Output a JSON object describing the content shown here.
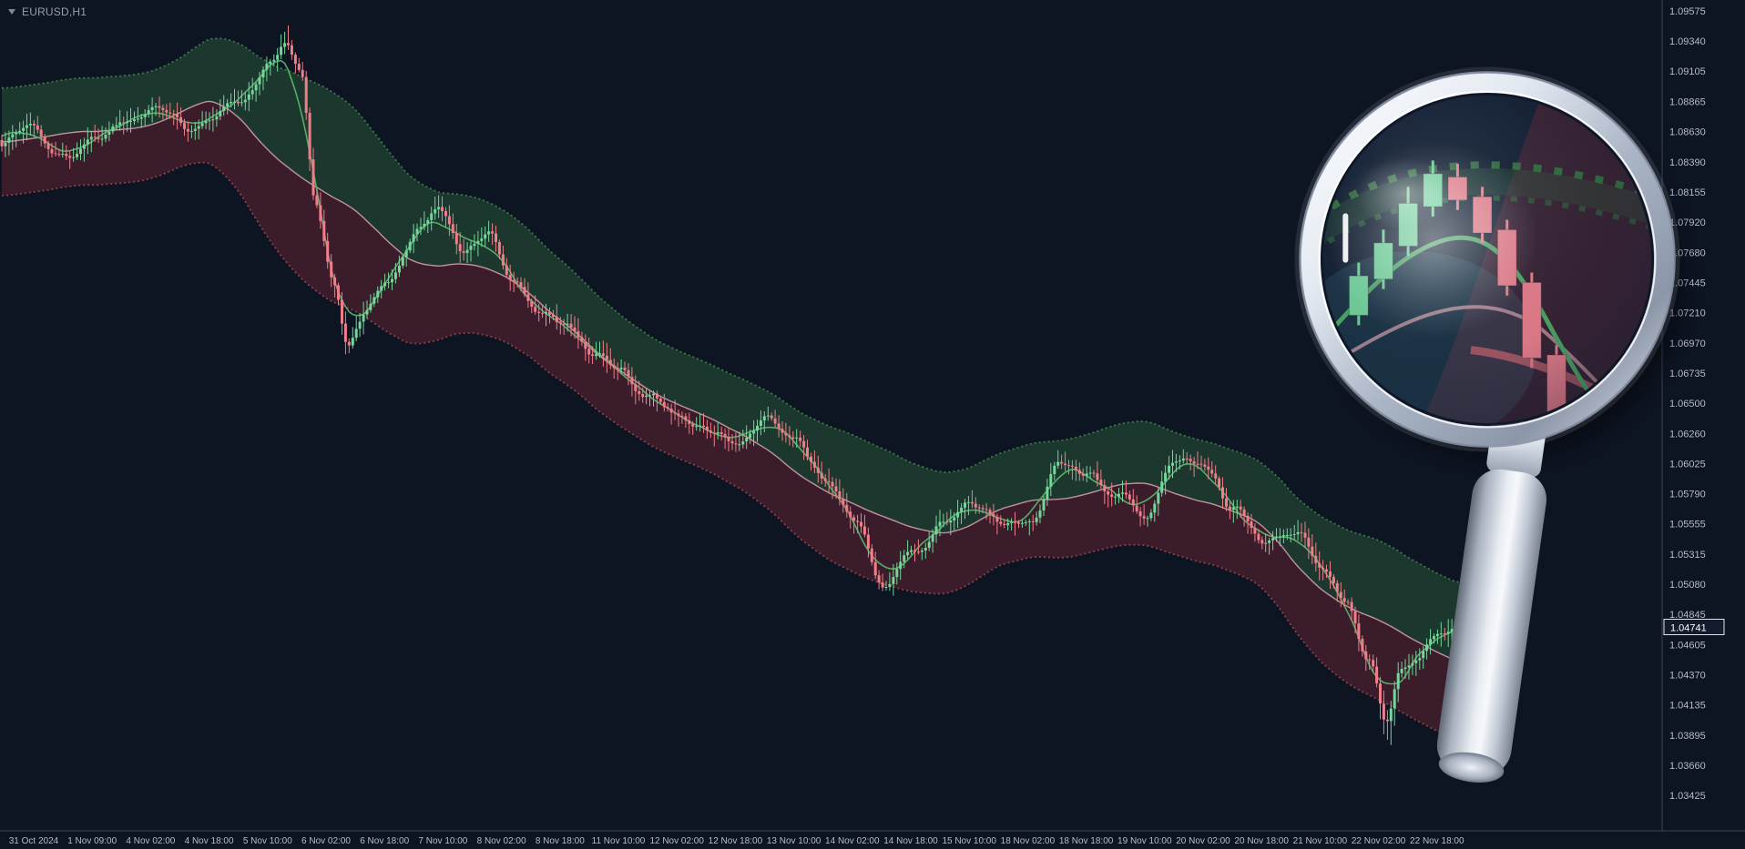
{
  "window": {
    "symbol_label": "EURUSD,H1"
  },
  "colors": {
    "background": "#0d1422",
    "axis_text": "#b3bdcf",
    "separator": "#3a445a",
    "bull": "#74d69a",
    "bear": "#ef7e8a",
    "band_up_fill": "rgba(52,112,62,0.38)",
    "band_dn_fill": "rgba(150,44,58,0.34)",
    "band_up_edge": "#3e7a49",
    "band_dn_edge": "#8e4049",
    "ma_slow": "#d2a0aa",
    "ma_fast": "#57b46c",
    "badge_bg": "#141b2c",
    "badge_border": "#dfe5ef",
    "badge_text": "#ffffff"
  },
  "chart_data": {
    "type": "candlestick",
    "symbol": "EURUSD",
    "timeframe": "H1",
    "current_price": "1.04741",
    "ylim": [
      1.03425,
      1.09575
    ],
    "bars_estimated": 408,
    "grid": "off",
    "indicator": "smoothed channel: green-filled upper half and red-filled lower half around price, fast green MA and slow pale MA",
    "y_ticks": [
      "1.09575",
      "1.09340",
      "1.09105",
      "1.08865",
      "1.08630",
      "1.08390",
      "1.08155",
      "1.07920",
      "1.07680",
      "1.07445",
      "1.07210",
      "1.06970",
      "1.06735",
      "1.06500",
      "1.06260",
      "1.06025",
      "1.05790",
      "1.05555",
      "1.05315",
      "1.05080",
      "1.04845",
      "1.04605",
      "1.04370",
      "1.04135",
      "1.03895",
      "1.03660",
      "1.03425"
    ],
    "x_ticks": [
      "31 Oct 2024",
      "1 Nov 09:00",
      "4 Nov 02:00",
      "4 Nov 18:00",
      "5 Nov 10:00",
      "6 Nov 02:00",
      "6 Nov 18:00",
      "7 Nov 10:00",
      "8 Nov 02:00",
      "8 Nov 18:00",
      "11 Nov 10:00",
      "12 Nov 02:00",
      "12 Nov 18:00",
      "13 Nov 10:00",
      "14 Nov 02:00",
      "14 Nov 18:00",
      "15 Nov 10:00",
      "18 Nov 02:00",
      "18 Nov 18:00",
      "19 Nov 10:00",
      "20 Nov 02:00",
      "20 Nov 18:00",
      "21 Nov 10:00",
      "22 Nov 02:00",
      "22 Nov 18:00"
    ],
    "trend_anchors": [
      [
        0.0,
        1.0856
      ],
      [
        0.02,
        1.0868
      ],
      [
        0.04,
        1.0842
      ],
      [
        0.063,
        1.0858
      ],
      [
        0.085,
        1.0872
      ],
      [
        0.103,
        1.0885
      ],
      [
        0.125,
        1.0868
      ],
      [
        0.144,
        1.0877
      ],
      [
        0.165,
        1.089
      ],
      [
        0.185,
        1.0915
      ],
      [
        0.195,
        1.0932
      ],
      [
        0.205,
        1.0905
      ],
      [
        0.215,
        1.081
      ],
      [
        0.228,
        1.0742
      ],
      [
        0.238,
        1.0695
      ],
      [
        0.25,
        1.0725
      ],
      [
        0.264,
        1.0744
      ],
      [
        0.285,
        1.0786
      ],
      [
        0.3,
        1.0803
      ],
      [
        0.318,
        1.0768
      ],
      [
        0.335,
        1.0782
      ],
      [
        0.352,
        1.0745
      ],
      [
        0.37,
        1.0722
      ],
      [
        0.384,
        1.0716
      ],
      [
        0.405,
        1.0688
      ],
      [
        0.424,
        1.0676
      ],
      [
        0.445,
        1.0655
      ],
      [
        0.465,
        1.0642
      ],
      [
        0.485,
        1.0628
      ],
      [
        0.505,
        1.0618
      ],
      [
        0.525,
        1.0635
      ],
      [
        0.545,
        1.062
      ],
      [
        0.565,
        1.0588
      ],
      [
        0.585,
        1.056
      ],
      [
        0.603,
        1.0507
      ],
      [
        0.625,
        1.0532
      ],
      [
        0.645,
        1.0558
      ],
      [
        0.665,
        1.0572
      ],
      [
        0.685,
        1.0556
      ],
      [
        0.706,
        1.0556
      ],
      [
        0.725,
        1.0601
      ],
      [
        0.746,
        1.0598
      ],
      [
        0.766,
        1.0575
      ],
      [
        0.786,
        1.0562
      ],
      [
        0.805,
        1.061
      ],
      [
        0.826,
        1.0598
      ],
      [
        0.846,
        1.0568
      ],
      [
        0.866,
        1.0542
      ],
      [
        0.886,
        1.0552
      ],
      [
        0.906,
        1.0524
      ],
      [
        0.922,
        1.0495
      ],
      [
        0.938,
        1.0448
      ],
      [
        0.95,
        1.0402
      ],
      [
        0.96,
        1.0438
      ],
      [
        0.972,
        1.0452
      ],
      [
        0.986,
        1.0468
      ],
      [
        1.0,
        1.04741
      ]
    ]
  },
  "magnifier": {
    "description": "magnifying-glass illustration zooming on the sell-off candles",
    "candles": [
      {
        "x": -0.78,
        "bt": 0.1,
        "bb": 0.34,
        "wt": 0.02,
        "wb": 0.4,
        "col": "g"
      },
      {
        "x": -0.63,
        "bt": -0.1,
        "bb": 0.12,
        "wt": -0.18,
        "wb": 0.18,
        "col": "g"
      },
      {
        "x": -0.48,
        "bt": -0.34,
        "bb": -0.08,
        "wt": -0.44,
        "wb": -0.02,
        "col": "g"
      },
      {
        "x": -0.33,
        "bt": -0.52,
        "bb": -0.32,
        "wt": -0.6,
        "wb": -0.26,
        "col": "g"
      },
      {
        "x": -0.18,
        "bt": -0.5,
        "bb": -0.36,
        "wt": -0.58,
        "wb": -0.3,
        "col": "r"
      },
      {
        "x": -0.03,
        "bt": -0.38,
        "bb": -0.16,
        "wt": -0.44,
        "wb": -0.1,
        "col": "r"
      },
      {
        "x": 0.12,
        "bt": -0.18,
        "bb": 0.16,
        "wt": -0.24,
        "wb": 0.22,
        "col": "r"
      },
      {
        "x": 0.27,
        "bt": 0.14,
        "bb": 0.6,
        "wt": 0.08,
        "wb": 0.66,
        "col": "r"
      },
      {
        "x": 0.42,
        "bt": 0.58,
        "bb": 1.02,
        "wt": 0.52,
        "wb": 1.1,
        "col": "r"
      },
      {
        "x": 0.57,
        "bt": 1.0,
        "bb": 1.3,
        "wt": 0.94,
        "wb": 1.38,
        "col": "r"
      },
      {
        "x": 0.72,
        "bt": 0.95,
        "bb": 1.15,
        "wt": 0.88,
        "wb": 1.22,
        "col": "g"
      }
    ]
  }
}
